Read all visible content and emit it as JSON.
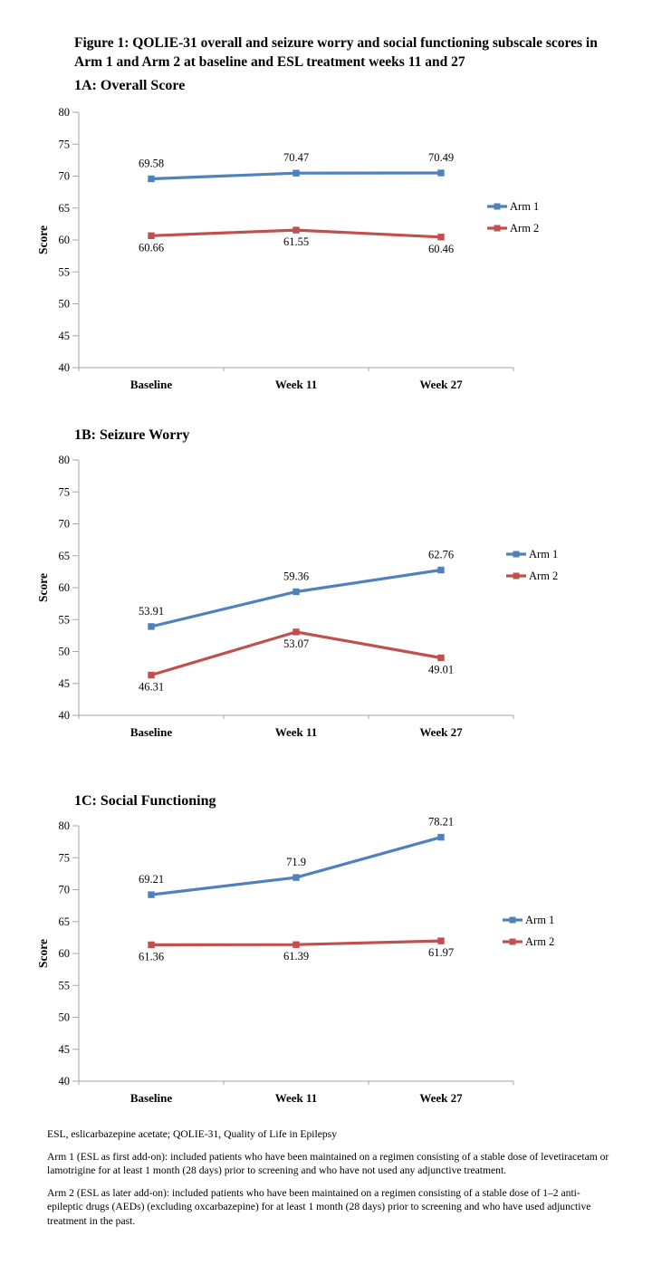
{
  "figure_title": "Figure 1: QOLIE-31 overall and seizure worry and social functioning subscale scores in Arm 1 and Arm 2 at baseline and ESL treatment weeks 11 and 27",
  "axis": {
    "ylabel": "Score",
    "ymin": 40,
    "ymax": 80,
    "ystep": 5,
    "yticks": [
      "80",
      "75",
      "70",
      "65",
      "60",
      "55",
      "50",
      "45",
      "40"
    ]
  },
  "categories": [
    "Baseline",
    "Week 11",
    "Week 27"
  ],
  "colors": {
    "arm1_blue": "#4F81BD",
    "arm2_red": "#C0504D",
    "axis_gray": "#A6A6A6"
  },
  "chart_data": [
    {
      "id": "1A",
      "type": "line",
      "title": "1A: Overall Score",
      "ylabel": "Score",
      "ylim": [
        40,
        80
      ],
      "grid": false,
      "legend_position": "right",
      "categories": [
        "Baseline",
        "Week 11",
        "Week 27"
      ],
      "series": [
        {
          "name": "Arm 1",
          "color_key": "arm1_blue",
          "values": [
            69.58,
            70.47,
            70.49
          ],
          "labels": [
            "69.58",
            "70.47",
            "70.49"
          ],
          "label_side": "above"
        },
        {
          "name": "Arm 2",
          "color_key": "arm2_red",
          "values": [
            60.66,
            61.55,
            60.46
          ],
          "labels": [
            "60.66",
            "61.55",
            "60.46"
          ],
          "label_side": "below"
        }
      ]
    },
    {
      "id": "1B",
      "type": "line",
      "title": "1B: Seizure Worry",
      "ylabel": "Score",
      "ylim": [
        40,
        80
      ],
      "grid": false,
      "legend_position": "right",
      "categories": [
        "Baseline",
        "Week 11",
        "Week 27"
      ],
      "series": [
        {
          "name": "Arm 1",
          "color_key": "arm1_blue",
          "values": [
            53.91,
            59.36,
            62.76
          ],
          "labels": [
            "53.91",
            "59.36",
            "62.76"
          ],
          "label_side": "above"
        },
        {
          "name": "Arm 2",
          "color_key": "arm2_red",
          "values": [
            46.31,
            53.07,
            49.01
          ],
          "labels": [
            "46.31",
            "53.07",
            "49.01"
          ],
          "label_side": "below"
        }
      ]
    },
    {
      "id": "1C",
      "type": "line",
      "title": "1C: Social Functioning",
      "ylabel": "Score",
      "ylim": [
        40,
        80
      ],
      "grid": false,
      "legend_position": "right",
      "categories": [
        "Baseline",
        "Week 11",
        "Week 27"
      ],
      "series": [
        {
          "name": "Arm 1",
          "color_key": "arm1_blue",
          "values": [
            69.21,
            71.9,
            78.21
          ],
          "labels": [
            "69.21",
            "71.9",
            "78.21"
          ],
          "label_side": "above"
        },
        {
          "name": "Arm 2",
          "color_key": "arm2_red",
          "values": [
            61.36,
            61.39,
            61.97
          ],
          "labels": [
            "61.36",
            "61.39",
            "61.97"
          ],
          "label_side": "below"
        }
      ]
    }
  ],
  "footnotes": [
    "ESL, eslicarbazepine acetate; QOLIE-31, Quality of Life in Epilepsy",
    "Arm 1 (ESL as first add-on): included patients who have been maintained on a regimen consisting of a stable dose of levetiracetam or lamotrigine for at least 1 month (28 days) prior to screening and who have not used any adjunctive treatment.",
    "Arm 2 (ESL as later add-on): included patients who have been maintained on a regimen consisting of a stable dose of 1–2 anti-epileptic drugs (AEDs) (excluding oxcarbazepine) for at least 1 month (28 days) prior to screening and who have used adjunctive treatment in the past."
  ]
}
